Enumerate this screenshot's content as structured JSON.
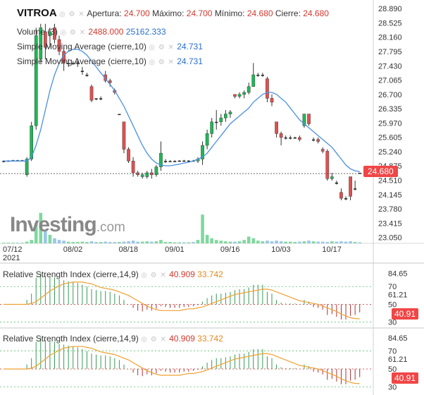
{
  "header": {
    "symbol": "VITROA",
    "open_label": "Apertura:",
    "open": "24.700",
    "high_label": "Máximo:",
    "high": "24.700",
    "low_label": "Mínimo:",
    "low": "24.680",
    "close_label": "Cierre:",
    "close": "24.680",
    "volume_label": "Volume (3)",
    "volume_value": "2488.000",
    "volume_avg": "25162.333",
    "sma1_label": "Simple Moving Average (cierre,10)",
    "sma1_value": "24.731",
    "sma2_label": "Simple Moving Average (cierre,10)",
    "sma2_value": "24.731",
    "controls": "◎ ⚙ ✕"
  },
  "rsi1": {
    "label": "Relative Strength Index (cierre,14,9)",
    "value": "40.909",
    "signal": "33.742",
    "box": "40.91",
    "axis": [
      "84.65",
      "70",
      "61.21",
      "50",
      "40.91",
      "30"
    ]
  },
  "rsi2": {
    "label": "Relative Strength Index (cierre,14,9)",
    "value": "40.909",
    "signal": "33.742",
    "box": "40.91",
    "axis": [
      "84.65",
      "70",
      "61.21",
      "50",
      "40.91",
      "30"
    ]
  },
  "logo": {
    "text": "Investing",
    "suffix": ".com"
  },
  "colors": {
    "up": "#1db954",
    "down": "#e05050",
    "sma": "#4a90e2",
    "rsi_signal": "#f0a030",
    "price_box": "#f04646"
  },
  "chart_data": {
    "type": "candlestick",
    "price_axis": [
      "28.890",
      "28.525",
      "28.160",
      "27.795",
      "27.430",
      "27.065",
      "26.700",
      "26.335",
      "25.970",
      "25.605",
      "25.240",
      "24.875",
      "24.510",
      "24.145",
      "23.780",
      "23.415",
      "23.050"
    ],
    "ylim": [
      22.9,
      29.0
    ],
    "last_price": "24.680",
    "x_ticks": [
      "07/12",
      "08/02",
      "08/18",
      "09/01",
      "09/16",
      "10/03",
      "10/17"
    ],
    "x_year": "2021",
    "x_tick_index": [
      0,
      15,
      27,
      37,
      49,
      60,
      71
    ],
    "candles": [
      [
        24.98,
        25.02,
        24.97,
        25.0
      ],
      [
        25.0,
        25.02,
        24.98,
        25.01
      ],
      [
        25.01,
        25.03,
        25.0,
        25.02
      ],
      [
        25.02,
        25.03,
        25.0,
        25.01
      ],
      [
        25.01,
        25.03,
        25.0,
        25.02
      ],
      [
        24.65,
        25.1,
        24.6,
        25.05
      ],
      [
        25.05,
        26.0,
        25.0,
        25.9
      ],
      [
        25.9,
        28.4,
        25.8,
        28.2
      ],
      [
        27.6,
        28.5,
        27.5,
        28.4
      ],
      [
        28.3,
        28.5,
        27.6,
        27.9
      ],
      [
        28.2,
        28.4,
        27.9,
        28.3
      ],
      [
        28.4,
        28.5,
        28.0,
        28.1
      ],
      [
        28.1,
        28.2,
        27.7,
        27.8
      ],
      [
        27.8,
        27.9,
        27.3,
        27.5
      ],
      [
        27.5,
        27.6,
        27.4,
        27.5
      ],
      [
        27.5,
        27.55,
        27.45,
        27.5
      ],
      [
        27.5,
        27.6,
        27.4,
        27.5
      ],
      [
        27.3,
        27.4,
        27.2,
        27.3
      ],
      [
        27.2,
        27.25,
        27.15,
        27.2
      ],
      [
        26.9,
        26.95,
        26.5,
        26.55
      ],
      [
        26.6,
        26.6,
        26.55,
        26.58
      ],
      [
        26.6,
        26.65,
        26.55,
        26.6
      ],
      [
        27.2,
        27.3,
        27.0,
        27.05
      ],
      [
        27.05,
        27.1,
        26.9,
        27.0
      ],
      [
        26.8,
        26.85,
        26.7,
        26.75
      ],
      [
        26.2,
        26.2,
        26.2,
        26.2
      ],
      [
        26.0,
        26.0,
        25.2,
        25.3
      ],
      [
        25.3,
        25.35,
        24.95,
        25.0
      ],
      [
        25.0,
        25.1,
        24.6,
        24.7
      ],
      [
        24.7,
        24.75,
        24.6,
        24.65
      ],
      [
        24.6,
        24.7,
        24.55,
        24.65
      ],
      [
        24.6,
        24.75,
        24.55,
        24.7
      ],
      [
        24.7,
        24.8,
        24.55,
        24.65
      ],
      [
        24.65,
        24.9,
        24.6,
        24.85
      ],
      [
        24.85,
        25.5,
        24.75,
        25.2
      ],
      [
        25.0,
        25.05,
        24.95,
        25.0
      ],
      [
        25.0,
        25.02,
        24.98,
        25.0
      ],
      [
        25.0,
        25.02,
        24.98,
        25.0
      ],
      [
        25.0,
        25.02,
        24.98,
        25.01
      ],
      [
        25.01,
        25.03,
        24.99,
        25.0
      ],
      [
        25.0,
        25.02,
        24.98,
        25.01
      ],
      [
        25.01,
        25.03,
        24.99,
        25.0
      ],
      [
        25.0,
        25.1,
        24.95,
        25.05
      ],
      [
        25.05,
        25.5,
        24.9,
        25.4
      ],
      [
        25.4,
        25.8,
        25.3,
        25.7
      ],
      [
        25.7,
        26.1,
        25.6,
        26.0
      ],
      [
        26.0,
        26.3,
        25.8,
        26.0
      ],
      [
        26.0,
        26.2,
        25.9,
        26.1
      ],
      [
        26.1,
        26.3,
        26.0,
        26.2
      ],
      [
        26.2,
        26.3,
        26.1,
        26.25
      ],
      [
        26.7,
        26.7,
        26.6,
        26.65
      ],
      [
        26.65,
        26.75,
        26.6,
        26.7
      ],
      [
        26.7,
        26.8,
        26.6,
        26.75
      ],
      [
        26.75,
        27.0,
        26.7,
        26.9
      ],
      [
        26.9,
        27.5,
        26.9,
        27.2
      ],
      [
        27.2,
        27.25,
        27.15,
        27.2
      ],
      [
        27.2,
        27.25,
        27.15,
        27.2
      ],
      [
        27.1,
        27.15,
        26.5,
        26.6
      ],
      [
        26.6,
        26.7,
        26.4,
        26.5
      ],
      [
        26.0,
        26.0,
        25.6,
        25.7
      ],
      [
        25.7,
        25.75,
        25.4,
        25.6
      ],
      [
        25.6,
        25.65,
        25.55,
        25.6
      ],
      [
        25.6,
        25.65,
        25.55,
        25.6
      ],
      [
        25.6,
        25.62,
        25.58,
        25.6
      ],
      [
        25.6,
        25.65,
        25.5,
        25.55
      ],
      [
        25.9,
        26.2,
        25.85,
        26.2
      ],
      [
        26.2,
        26.2,
        25.9,
        25.95
      ],
      [
        25.55,
        25.6,
        25.5,
        25.55
      ],
      [
        25.55,
        25.6,
        25.45,
        25.5
      ],
      [
        25.3,
        25.35,
        25.2,
        25.25
      ],
      [
        25.25,
        25.3,
        24.5,
        24.55
      ],
      [
        24.55,
        24.7,
        24.5,
        24.6
      ],
      [
        24.45,
        24.5,
        24.4,
        24.42
      ],
      [
        24.2,
        24.3,
        24.0,
        24.05
      ],
      [
        24.05,
        24.1,
        24.0,
        24.04
      ],
      [
        24.6,
        24.6,
        24.0,
        24.1
      ],
      [
        24.3,
        24.5,
        24.25,
        24.3
      ],
      [
        24.7,
        24.7,
        24.68,
        24.68
      ]
    ],
    "sma": [
      25.0,
      25.0,
      25.0,
      25.0,
      25.0,
      25.0,
      25.1,
      25.4,
      25.8,
      26.3,
      26.8,
      27.2,
      27.5,
      27.7,
      27.8,
      27.85,
      27.85,
      27.8,
      27.7,
      27.55,
      27.4,
      27.25,
      27.1,
      26.95,
      26.8,
      26.6,
      26.4,
      26.15,
      25.9,
      25.65,
      25.4,
      25.2,
      25.05,
      24.95,
      24.9,
      24.88,
      24.88,
      24.9,
      24.92,
      24.95,
      24.97,
      25.0,
      25.05,
      25.1,
      25.2,
      25.35,
      25.5,
      25.65,
      25.8,
      25.95,
      26.05,
      26.15,
      26.25,
      26.35,
      26.5,
      26.6,
      26.7,
      26.75,
      26.75,
      26.7,
      26.6,
      26.5,
      26.35,
      26.2,
      26.05,
      25.95,
      25.85,
      25.75,
      25.65,
      25.55,
      25.45,
      25.35,
      25.2,
      25.05,
      24.9,
      24.8,
      24.75,
      24.73
    ],
    "volume": [
      0.02,
      0.02,
      0.02,
      0.02,
      0.02,
      0.05,
      0.1,
      0.6,
      0.9,
      0.4,
      0.25,
      0.15,
      0.1,
      0.08,
      0.05,
      0.04,
      0.04,
      0.05,
      0.04,
      0.06,
      0.04,
      0.04,
      0.05,
      0.04,
      0.04,
      0.04,
      0.05,
      0.06,
      0.08,
      0.05,
      0.05,
      0.06,
      0.05,
      0.06,
      0.1,
      0.04,
      0.04,
      0.03,
      0.03,
      0.03,
      0.03,
      0.04,
      0.1,
      0.85,
      0.25,
      0.15,
      0.1,
      0.08,
      0.06,
      0.05,
      0.05,
      0.06,
      0.1,
      0.2,
      0.15,
      0.08,
      0.06,
      0.08,
      0.06,
      0.08,
      0.06,
      0.05,
      0.05,
      0.04,
      0.05,
      0.06,
      0.08,
      0.06,
      0.05,
      0.05,
      0.04,
      0.06,
      0.05,
      0.06,
      0.05,
      0.06,
      0.04,
      0.03
    ],
    "rsi": [
      50,
      50,
      50,
      50,
      50,
      55,
      62,
      80,
      85,
      82,
      81,
      80,
      78,
      77,
      76,
      75,
      74,
      72,
      70,
      67,
      66,
      65,
      65,
      64,
      62,
      60,
      55,
      50,
      46,
      43,
      42,
      44,
      43,
      45,
      48,
      47,
      46,
      46,
      46,
      47,
      47,
      48,
      49,
      53,
      57,
      60,
      62,
      62,
      63,
      64,
      66,
      67,
      67,
      69,
      72,
      72,
      72,
      64,
      62,
      55,
      52,
      51,
      51,
      51,
      50,
      55,
      53,
      47,
      46,
      44,
      38,
      39,
      36,
      33,
      33,
      37,
      38,
      40.9
    ],
    "rsi_signal": [
      50,
      50,
      50,
      50,
      50,
      50,
      51,
      53,
      57,
      61,
      65,
      68,
      71,
      73,
      74,
      75,
      75,
      75,
      74,
      73,
      71,
      69,
      68,
      67,
      66,
      64,
      62,
      60,
      57,
      54,
      51,
      48,
      46,
      44,
      43,
      43,
      43,
      43,
      43,
      44,
      45,
      45,
      46,
      47,
      49,
      51,
      53,
      55,
      57,
      59,
      61,
      62,
      63,
      64,
      65,
      66,
      67,
      67,
      66,
      64,
      62,
      60,
      58,
      56,
      54,
      53,
      52,
      51,
      50,
      48,
      46,
      44,
      42,
      39,
      37,
      35,
      34,
      33.7
    ]
  }
}
